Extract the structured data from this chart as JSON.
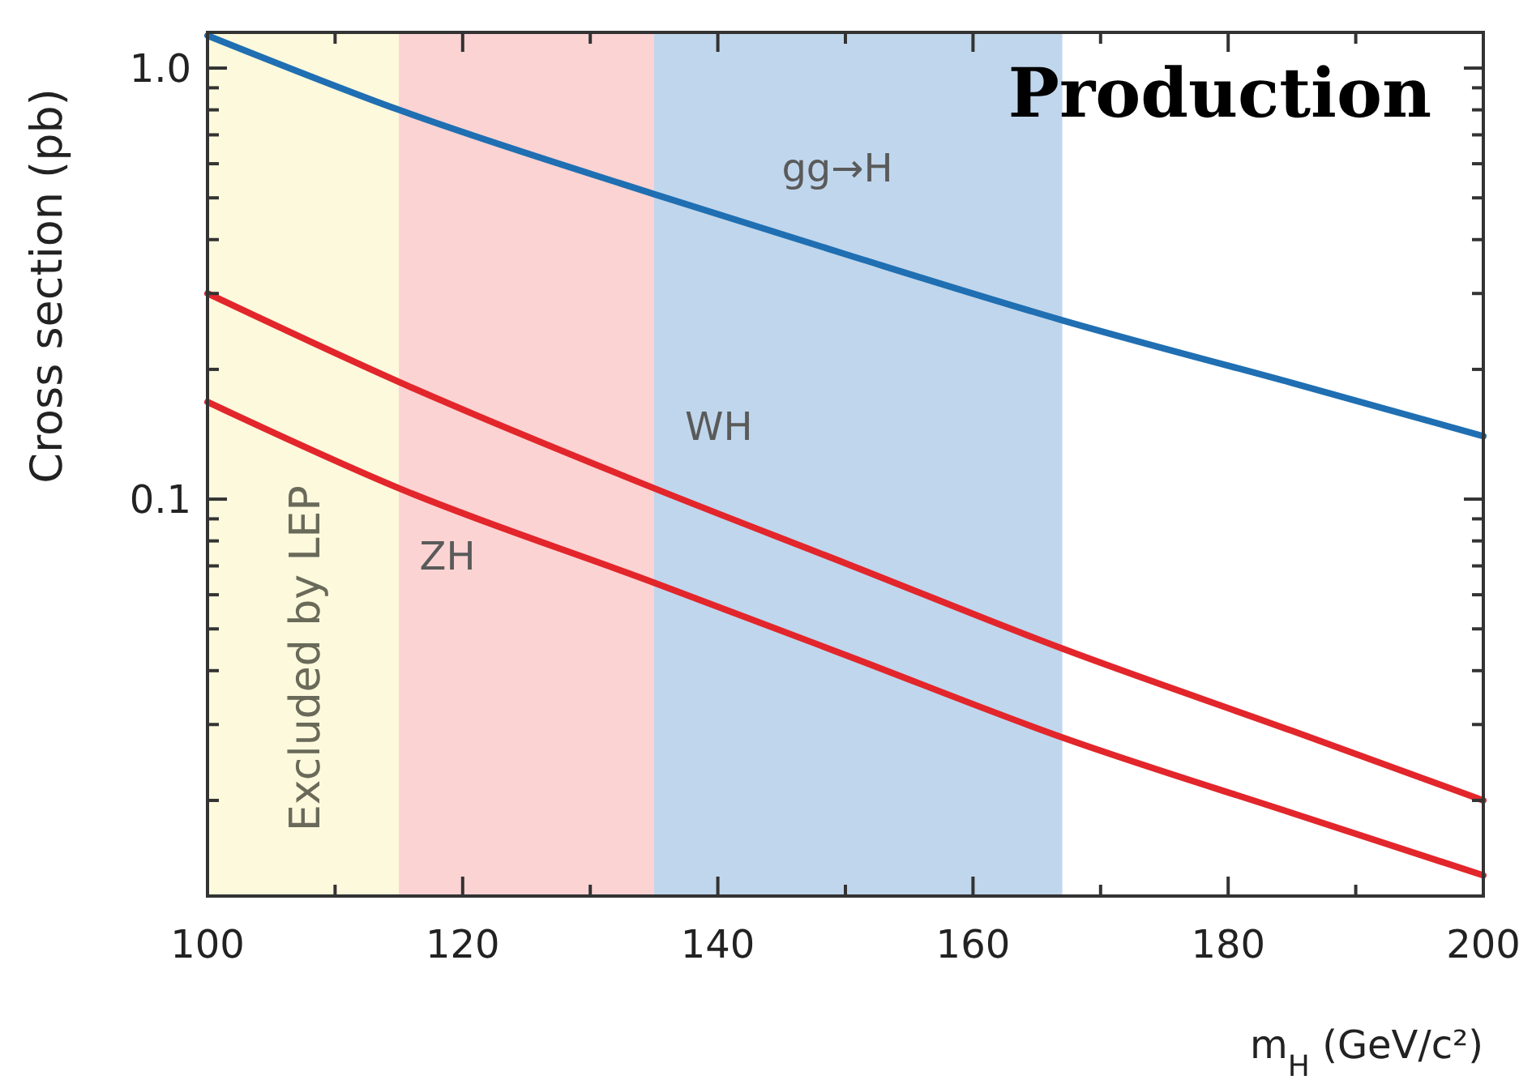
{
  "chart_data": {
    "type": "line",
    "title": "Production",
    "xlabel": "m$_{H}$ (GeV/c²)",
    "ylabel": "Cross section (pb)",
    "x": [
      100,
      115,
      135,
      150,
      167,
      185,
      200
    ],
    "series": [
      {
        "name": "gg→H",
        "color": "#1f6fb2",
        "values": [
          1.19,
          0.8,
          0.51,
          0.37,
          0.26,
          0.186,
          0.14
        ]
      },
      {
        "name": "WH",
        "color": "#e2262b",
        "values": [
          0.3,
          0.187,
          0.106,
          0.071,
          0.045,
          0.029,
          0.02
        ]
      },
      {
        "name": "ZH",
        "color": "#e2262b",
        "values": [
          0.168,
          0.106,
          0.064,
          0.0435,
          0.028,
          0.0187,
          0.0134
        ]
      }
    ],
    "xlim": [
      100,
      200
    ],
    "xticks": [
      100,
      {
        "value": 110,
        "label": null
      },
      120,
      {
        "value": 130,
        "label": null
      },
      140,
      {
        "value": 150,
        "label": null
      },
      160,
      {
        "value": 170,
        "label": null
      },
      180,
      {
        "value": 190,
        "label": null
      },
      200
    ],
    "ylim": [
      0.012,
      1.21
    ],
    "log": true,
    "yticks": [
      {
        "value": 0.02,
        "label": null
      },
      {
        "value": 0.03,
        "label": null
      },
      {
        "value": 0.04,
        "label": null
      },
      {
        "value": 0.05,
        "label": null
      },
      {
        "value": 0.06,
        "label": null
      },
      {
        "value": 0.07,
        "label": null
      },
      {
        "value": 0.08,
        "label": null
      },
      {
        "value": 0.09,
        "label": null
      },
      0.1,
      {
        "value": 0.2,
        "label": null
      },
      {
        "value": 0.3,
        "label": null
      },
      {
        "value": 0.4,
        "label": null
      },
      {
        "value": 0.5,
        "label": null
      },
      {
        "value": 0.6,
        "label": null
      },
      {
        "value": 0.7,
        "label": null
      },
      {
        "value": 0.8,
        "label": null
      },
      {
        "value": 0.9,
        "label": null
      },
      {
        "value": 1,
        "label": "1.0"
      }
    ],
    "bands": [
      {
        "axis": "x",
        "from": 100,
        "to": 115,
        "label": "Excluded by LEP",
        "color": "#fdf9dc"
      },
      {
        "axis": "x",
        "from": 115,
        "to": 135,
        "color": "#fbd3d3"
      },
      {
        "axis": "x",
        "from": 135,
        "to": 167,
        "color": "#c0d6ec"
      }
    ],
    "line_style": "solid",
    "marker": "none",
    "grid": false
  }
}
